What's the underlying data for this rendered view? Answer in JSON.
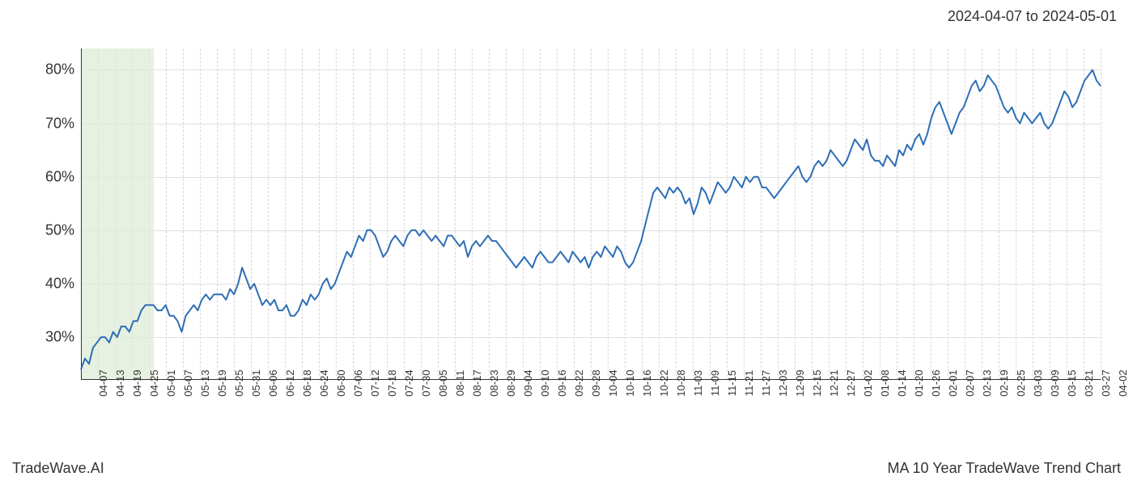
{
  "header": {
    "date_range": "2024-04-07 to 2024-05-01"
  },
  "footer": {
    "left": "TradeWave.AI",
    "right": "MA 10 Year TradeWave Trend Chart"
  },
  "chart": {
    "type": "line",
    "background_color": "#ffffff",
    "grid_color_h": "#e0e0e0",
    "grid_color_v": "#d8d8d8",
    "axis_color": "#333333",
    "line_color": "#2e6eb5",
    "line_width": 2,
    "highlight_band": {
      "color": "#dcebd4",
      "opacity": 0.7,
      "start_index": 0,
      "end_index": 4.3
    },
    "y_axis": {
      "min": 22,
      "max": 84,
      "ticks": [
        30,
        40,
        50,
        60,
        70,
        80
      ],
      "tick_labels": [
        "30%",
        "40%",
        "50%",
        "60%",
        "70%",
        "80%"
      ],
      "label_fontsize": 18
    },
    "x_axis": {
      "labels": [
        "04-07",
        "04-13",
        "04-19",
        "04-25",
        "05-01",
        "05-07",
        "05-13",
        "05-19",
        "05-25",
        "05-31",
        "06-06",
        "06-12",
        "06-18",
        "06-24",
        "06-30",
        "07-06",
        "07-12",
        "07-18",
        "07-24",
        "07-30",
        "08-05",
        "08-11",
        "08-17",
        "08-23",
        "08-29",
        "09-04",
        "09-10",
        "09-16",
        "09-22",
        "09-28",
        "10-04",
        "10-10",
        "10-16",
        "10-22",
        "10-28",
        "11-03",
        "11-09",
        "11-15",
        "11-21",
        "11-27",
        "12-03",
        "12-09",
        "12-15",
        "12-21",
        "12-27",
        "01-02",
        "01-08",
        "01-14",
        "01-20",
        "01-26",
        "02-01",
        "02-07",
        "02-13",
        "02-19",
        "02-25",
        "03-03",
        "03-09",
        "03-15",
        "03-21",
        "03-27",
        "04-02"
      ],
      "label_fontsize": 13,
      "label_rotation": -90
    },
    "series": {
      "values": [
        24,
        26,
        25,
        28,
        29,
        30,
        30,
        29,
        31,
        30,
        32,
        32,
        31,
        33,
        33,
        35,
        36,
        36,
        36,
        35,
        35,
        36,
        34,
        34,
        33,
        31,
        34,
        35,
        36,
        35,
        37,
        38,
        37,
        38,
        38,
        38,
        37,
        39,
        38,
        40,
        43,
        41,
        39,
        40,
        38,
        36,
        37,
        36,
        37,
        35,
        35,
        36,
        34,
        34,
        35,
        37,
        36,
        38,
        37,
        38,
        40,
        41,
        39,
        40,
        42,
        44,
        46,
        45,
        47,
        49,
        48,
        50,
        50,
        49,
        47,
        45,
        46,
        48,
        49,
        48,
        47,
        49,
        50,
        50,
        49,
        50,
        49,
        48,
        49,
        48,
        47,
        49,
        49,
        48,
        47,
        48,
        45,
        47,
        48,
        47,
        48,
        49,
        48,
        48,
        47,
        46,
        45,
        44,
        43,
        44,
        45,
        44,
        43,
        45,
        46,
        45,
        44,
        44,
        45,
        46,
        45,
        44,
        46,
        45,
        44,
        45,
        43,
        45,
        46,
        45,
        47,
        46,
        45,
        47,
        46,
        44,
        43,
        44,
        46,
        48,
        51,
        54,
        57,
        58,
        57,
        56,
        58,
        57,
        58,
        57,
        55,
        56,
        53,
        55,
        58,
        57,
        55,
        57,
        59,
        58,
        57,
        58,
        60,
        59,
        58,
        60,
        59,
        60,
        60,
        58,
        58,
        57,
        56,
        57,
        58,
        59,
        60,
        61,
        62,
        60,
        59,
        60,
        62,
        63,
        62,
        63,
        65,
        64,
        63,
        62,
        63,
        65,
        67,
        66,
        65,
        67,
        64,
        63,
        63,
        62,
        64,
        63,
        62,
        65,
        64,
        66,
        65,
        67,
        68,
        66,
        68,
        71,
        73,
        74,
        72,
        70,
        68,
        70,
        72,
        73,
        75,
        77,
        78,
        76,
        77,
        79,
        78,
        77,
        75,
        73,
        72,
        73,
        71,
        70,
        72,
        71,
        70,
        71,
        72,
        70,
        69,
        70,
        72,
        74,
        76,
        75,
        73,
        74,
        76,
        78,
        79,
        80,
        78,
        77
      ]
    }
  }
}
